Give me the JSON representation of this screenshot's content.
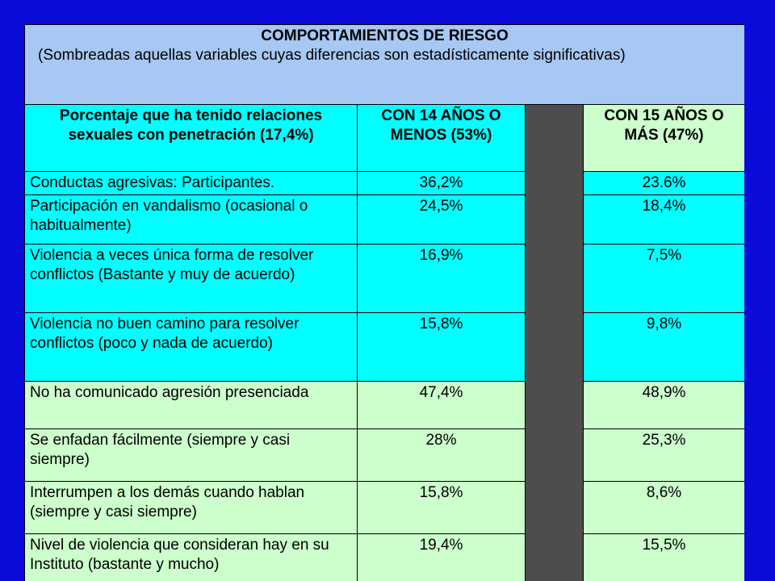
{
  "title": "COMPORTAMIENTOS DE RIESGO",
  "subtitle": "(Sombreadas aquellas variables cuyas diferencias son estadísticamente significativas)",
  "header": {
    "col1": "Porcentaje que ha tenido relaciones sexuales con penetración (17,4%)",
    "col2": "CON 14 AÑOS O MENOS (53%)",
    "col3": "CON 15 AÑOS O MÁS (47%)"
  },
  "colors": {
    "background": "#0b0bd9",
    "title_bg": "#a6c8f2",
    "shaded": "#00ffff",
    "unshaded": "#ccffcc",
    "separator": "#4d4d4d"
  },
  "rows": [
    {
      "label": "Conductas agresivas: Participantes.",
      "a": "36,2%",
      "b": "23.6%",
      "shaded": true
    },
    {
      "label": "Participación en vandalismo (ocasional o habitualmente)",
      "a": "24,5%",
      "b": "18,4%",
      "shaded": true
    },
    {
      "label": "Violencia a veces única forma de resolver conflictos (Bastante y muy de acuerdo)",
      "a": "16,9%",
      "b": "7,5%",
      "shaded": true
    },
    {
      "label": "Violencia no buen camino para resolver conflictos (poco y nada de acuerdo)",
      "a": "15,8%",
      "b": "9,8%",
      "shaded": true
    },
    {
      "label": "No ha comunicado agresión presenciada",
      "a": "47,4%",
      "b": "48,9%",
      "shaded": false
    },
    {
      "label": "Se enfadan fácilmente (siempre y casi siempre)",
      "a": "28%",
      "b": "25,3%",
      "shaded": false
    },
    {
      "label": "Interrumpen a los demás cuando hablan (siempre y casi siempre)",
      "a": "15,8%",
      "b": "8,6%",
      "shaded": false
    },
    {
      "label": "Nivel de violencia que consideran hay en su Instituto (bastante y mucho)",
      "a": "19,4%",
      "b": "15,5%",
      "shaded": false
    }
  ]
}
